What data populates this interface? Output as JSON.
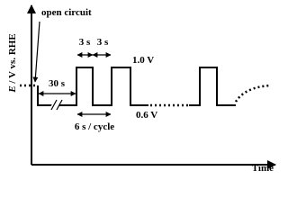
{
  "y_axis_label": {
    "symbol": "E",
    "rest": " / V vs. RHE"
  },
  "x_axis_label": "Time",
  "annotations": {
    "open_circuit": "open circuit",
    "hold": "30 s",
    "upper_time": "3 s",
    "lower_time": "3 s",
    "upper_potential": "1.0 V",
    "lower_potential": "0.6 V",
    "cycle": "6 s / cycle"
  }
}
